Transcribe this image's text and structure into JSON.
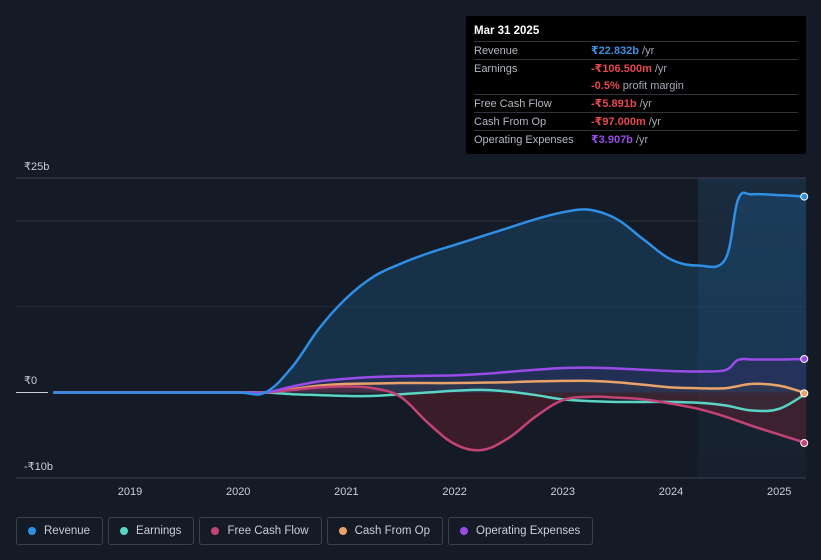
{
  "colors": {
    "revenue": "#2f8fe6",
    "earnings": "#5ad4c4",
    "free_cash_flow": "#c44377",
    "cash_from_op": "#e9a36a",
    "operating_expenses": "#9b4ce8",
    "background": "#151b26"
  },
  "tooltip": {
    "date": "Mar 31 2025",
    "rows": [
      {
        "label": "Revenue",
        "value": "₹22.832b",
        "suffix": "/yr",
        "color": "#3b8fe0"
      },
      {
        "label": "Earnings",
        "value": "-₹106.500m",
        "suffix": "/yr",
        "color": "#e5484d"
      },
      {
        "label": "",
        "value": "-0.5%",
        "suffix": "profit margin",
        "color": "#e5484d"
      },
      {
        "label": "Free Cash Flow",
        "value": "-₹5.891b",
        "suffix": "/yr",
        "color": "#e5484d"
      },
      {
        "label": "Cash From Op",
        "value": "-₹97.000m",
        "suffix": "/yr",
        "color": "#e5484d"
      },
      {
        "label": "Operating Expenses",
        "value": "₹3.907b",
        "suffix": "/yr",
        "color": "#9b4ce8"
      }
    ]
  },
  "legend": [
    {
      "label": "Revenue",
      "color": "#2f8fe6"
    },
    {
      "label": "Earnings",
      "color": "#5ad4c4"
    },
    {
      "label": "Free Cash Flow",
      "color": "#c44377"
    },
    {
      "label": "Cash From Op",
      "color": "#e9a36a"
    },
    {
      "label": "Operating Expenses",
      "color": "#9b4ce8"
    }
  ],
  "chart_data": {
    "type": "area",
    "title": "",
    "xlabel": "",
    "ylabel": "",
    "y_tick_labels": [
      "₹25b",
      "₹0",
      "-₹10b"
    ],
    "x_tick_labels": [
      "2019",
      "2020",
      "2021",
      "2022",
      "2023",
      "2024",
      "2025"
    ],
    "x_ticks": [
      2019,
      2020,
      2021,
      2022,
      2023,
      2024,
      2025
    ],
    "xlim": [
      2018,
      2025.25
    ],
    "ylim": [
      -10,
      25
    ],
    "highlight_start": 2024.25,
    "series": [
      {
        "name": "Revenue",
        "key": "revenue",
        "points": [
          [
            2018.3,
            0
          ],
          [
            2019,
            0
          ],
          [
            2019.5,
            0
          ],
          [
            2020,
            0
          ],
          [
            2020.25,
            0
          ],
          [
            2020.5,
            3
          ],
          [
            2020.75,
            7.5
          ],
          [
            2021,
            11
          ],
          [
            2021.25,
            13.5
          ],
          [
            2021.5,
            15
          ],
          [
            2021.75,
            16.2
          ],
          [
            2022,
            17.2
          ],
          [
            2022.25,
            18.2
          ],
          [
            2022.5,
            19.2
          ],
          [
            2022.75,
            20.2
          ],
          [
            2023,
            21
          ],
          [
            2023.25,
            21.3
          ],
          [
            2023.5,
            20.2
          ],
          [
            2023.75,
            17.8
          ],
          [
            2024,
            15.5
          ],
          [
            2024.25,
            14.8
          ],
          [
            2024.5,
            15.5
          ],
          [
            2024.62,
            22.5
          ],
          [
            2024.75,
            23.1
          ],
          [
            2025,
            23
          ],
          [
            2025.25,
            22.832
          ]
        ]
      },
      {
        "name": "Earnings",
        "key": "earnings",
        "points": [
          [
            2018.3,
            0
          ],
          [
            2019,
            0
          ],
          [
            2019.5,
            0
          ],
          [
            2020,
            0
          ],
          [
            2020.25,
            0
          ],
          [
            2020.5,
            -0.2
          ],
          [
            2020.75,
            -0.3
          ],
          [
            2021,
            -0.4
          ],
          [
            2021.25,
            -0.4
          ],
          [
            2021.5,
            -0.2
          ],
          [
            2021.75,
            0
          ],
          [
            2022,
            0.2
          ],
          [
            2022.25,
            0.3
          ],
          [
            2022.5,
            0.1
          ],
          [
            2022.75,
            -0.3
          ],
          [
            2023,
            -0.8
          ],
          [
            2023.25,
            -1.0
          ],
          [
            2023.5,
            -1.1
          ],
          [
            2023.75,
            -1.1
          ],
          [
            2024,
            -1.1
          ],
          [
            2024.25,
            -1.2
          ],
          [
            2024.5,
            -1.5
          ],
          [
            2024.75,
            -2.1
          ],
          [
            2025,
            -1.9
          ],
          [
            2025.25,
            -0.106
          ]
        ]
      },
      {
        "name": "Free Cash Flow",
        "key": "free_cash_flow",
        "points": [
          [
            2018.3,
            0
          ],
          [
            2019,
            0
          ],
          [
            2019.5,
            0
          ],
          [
            2020,
            0
          ],
          [
            2020.25,
            0
          ],
          [
            2020.5,
            0.3
          ],
          [
            2020.75,
            0.6
          ],
          [
            2021,
            0.7
          ],
          [
            2021.25,
            0.5
          ],
          [
            2021.5,
            -0.5
          ],
          [
            2021.75,
            -3.5
          ],
          [
            2022,
            -6.0
          ],
          [
            2022.25,
            -6.7
          ],
          [
            2022.5,
            -5.3
          ],
          [
            2022.75,
            -2.8
          ],
          [
            2023,
            -0.9
          ],
          [
            2023.25,
            -0.5
          ],
          [
            2023.5,
            -0.6
          ],
          [
            2023.75,
            -0.8
          ],
          [
            2024,
            -1.3
          ],
          [
            2024.25,
            -1.9
          ],
          [
            2024.5,
            -2.8
          ],
          [
            2024.75,
            -3.9
          ],
          [
            2025,
            -4.9
          ],
          [
            2025.25,
            -5.891
          ]
        ]
      },
      {
        "name": "Cash From Op",
        "key": "cash_from_op",
        "points": [
          [
            2018.3,
            0
          ],
          [
            2019,
            0
          ],
          [
            2019.5,
            0
          ],
          [
            2020,
            0
          ],
          [
            2020.25,
            0
          ],
          [
            2020.5,
            0.4
          ],
          [
            2020.75,
            0.8
          ],
          [
            2021,
            1.0
          ],
          [
            2021.25,
            1.05
          ],
          [
            2021.5,
            1.1
          ],
          [
            2021.75,
            1.1
          ],
          [
            2022,
            1.1
          ],
          [
            2022.25,
            1.15
          ],
          [
            2022.5,
            1.2
          ],
          [
            2022.75,
            1.3
          ],
          [
            2023,
            1.35
          ],
          [
            2023.25,
            1.35
          ],
          [
            2023.5,
            1.2
          ],
          [
            2023.75,
            0.9
          ],
          [
            2024,
            0.6
          ],
          [
            2024.25,
            0.5
          ],
          [
            2024.5,
            0.5
          ],
          [
            2024.75,
            1.0
          ],
          [
            2025,
            0.8
          ],
          [
            2025.25,
            -0.097
          ]
        ]
      },
      {
        "name": "Operating Expenses",
        "key": "operating_expenses",
        "points": [
          [
            2018.3,
            0
          ],
          [
            2019,
            0
          ],
          [
            2019.5,
            0
          ],
          [
            2020,
            0
          ],
          [
            2020.25,
            0
          ],
          [
            2020.5,
            0.7
          ],
          [
            2020.75,
            1.3
          ],
          [
            2021,
            1.6
          ],
          [
            2021.25,
            1.8
          ],
          [
            2021.5,
            1.9
          ],
          [
            2021.75,
            1.95
          ],
          [
            2022,
            2.0
          ],
          [
            2022.25,
            2.15
          ],
          [
            2022.5,
            2.4
          ],
          [
            2022.75,
            2.65
          ],
          [
            2023,
            2.85
          ],
          [
            2023.25,
            2.9
          ],
          [
            2023.5,
            2.8
          ],
          [
            2023.75,
            2.65
          ],
          [
            2024,
            2.5
          ],
          [
            2024.25,
            2.45
          ],
          [
            2024.5,
            2.6
          ],
          [
            2024.62,
            3.8
          ],
          [
            2024.75,
            3.85
          ],
          [
            2025,
            3.85
          ],
          [
            2025.25,
            3.907
          ]
        ]
      }
    ]
  }
}
